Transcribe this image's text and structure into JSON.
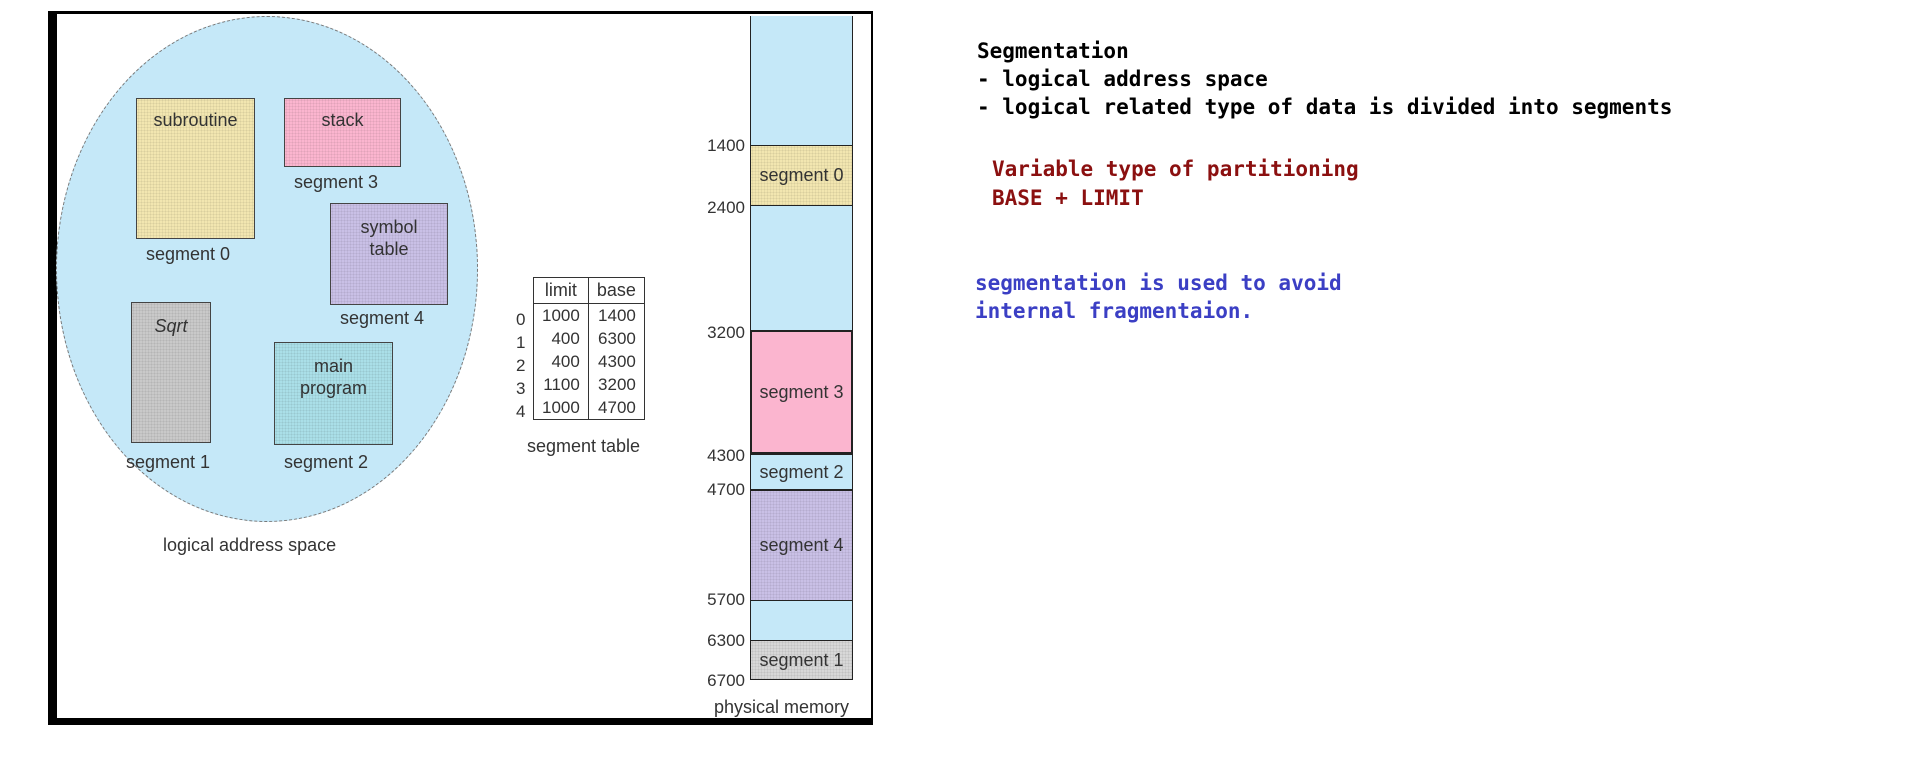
{
  "figure": {
    "logical_space_caption": "logical address space",
    "segments": {
      "subroutine": {
        "label": "subroutine",
        "caption": "segment 0",
        "color": "#f2e6b0"
      },
      "stack": {
        "label": "stack",
        "caption": "segment 3",
        "color": "#fbb5cf"
      },
      "symbol_table": {
        "label": "symbol table",
        "caption": "segment 4",
        "color": "#c9c0e6"
      },
      "sqrt": {
        "label": "Sqrt",
        "caption": "segment 1",
        "color": "#c9c9c9"
      },
      "main_program": {
        "label": "main program",
        "caption": "segment 2",
        "color": "#aadfe8"
      }
    },
    "segment_table": {
      "caption": "segment table",
      "headers": [
        "limit",
        "base"
      ],
      "rows": [
        {
          "index": "0",
          "limit": "1000",
          "base": "1400"
        },
        {
          "index": "1",
          "limit": "400",
          "base": "6300"
        },
        {
          "index": "2",
          "limit": "400",
          "base": "4300"
        },
        {
          "index": "3",
          "limit": "1100",
          "base": "3200"
        },
        {
          "index": "4",
          "limit": "1000",
          "base": "4700"
        }
      ]
    },
    "physical_memory": {
      "caption": "physical memory",
      "addresses": [
        "1400",
        "2400",
        "3200",
        "4300",
        "4700",
        "5700",
        "6300",
        "6700"
      ],
      "blocks": [
        {
          "label": "segment 0",
          "color": "#f2e6b0"
        },
        {
          "label": "segment 3",
          "color": "#fbb5cf"
        },
        {
          "label": "segment 2",
          "color": "#c5e8f8"
        },
        {
          "label": "segment 4",
          "color": "#c9c0e6"
        },
        {
          "label": "segment 1",
          "color": "#d8d8d8"
        }
      ],
      "free_color": "#c5e8f8"
    }
  },
  "notes": {
    "heading": "Segmentation",
    "line1": "- logical address space",
    "line2": "- logical related type of data is divided into segments",
    "red1": "Variable type of partitioning",
    "red2": "BASE + LIMIT",
    "blue1": "segmentation is used to avoid",
    "blue2": "internal fragmentaion.",
    "colors": {
      "black": "#000000",
      "red": "#8b1010",
      "blue": "#3b3fc4"
    }
  }
}
